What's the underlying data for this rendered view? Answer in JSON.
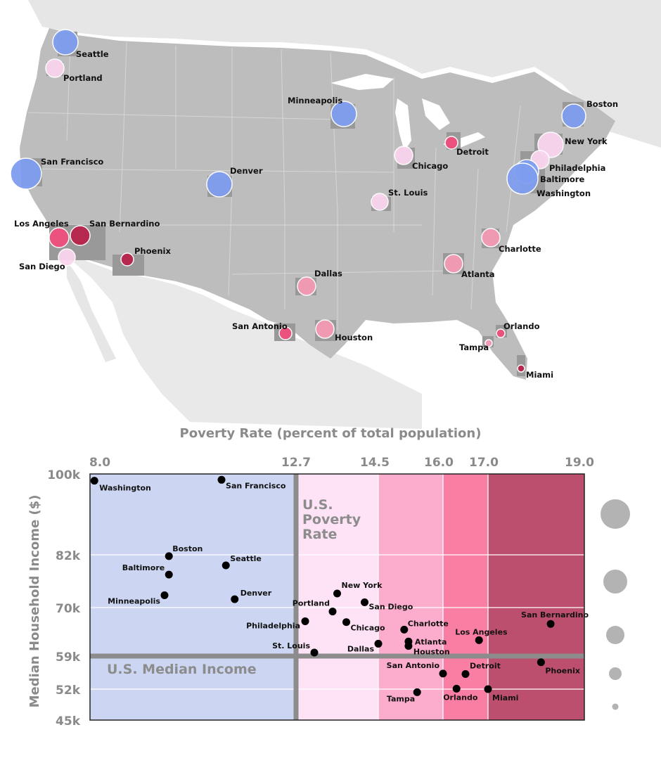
{
  "colors": {
    "blue_bubble": "#7f9ef0",
    "light_pink_bubble": "#fad6ee",
    "mid_pink_bubble": "#f59ab5",
    "hot_pink_bubble": "#ef4f7c",
    "dark_red_bubble": "#b8224a",
    "band_blue": "#ccd6f2",
    "band_lightpink": "#fde3f5",
    "band_pink": "#fcaccc",
    "band_hotpink": "#f97ea4",
    "band_darkred": "#bd4f6e",
    "reference_line": "#8c8c8c"
  },
  "map": {
    "cities": [
      {
        "name": "Seattle",
        "color": "blue"
      },
      {
        "name": "Portland",
        "color": "light_pink"
      },
      {
        "name": "San Francisco",
        "color": "blue"
      },
      {
        "name": "Los Angeles",
        "color": "hot_pink"
      },
      {
        "name": "San Bernardino",
        "color": "dark_red"
      },
      {
        "name": "San Diego",
        "color": "light_pink"
      },
      {
        "name": "Phoenix",
        "color": "dark_red"
      },
      {
        "name": "Denver",
        "color": "blue"
      },
      {
        "name": "Minneapolis",
        "color": "blue"
      },
      {
        "name": "Dallas",
        "color": "mid_pink"
      },
      {
        "name": "San Antonio",
        "color": "hot_pink"
      },
      {
        "name": "Houston",
        "color": "mid_pink"
      },
      {
        "name": "Chicago",
        "color": "light_pink"
      },
      {
        "name": "St. Louis",
        "color": "light_pink"
      },
      {
        "name": "Detroit",
        "color": "hot_pink"
      },
      {
        "name": "Atlanta",
        "color": "mid_pink"
      },
      {
        "name": "Charlotte",
        "color": "mid_pink"
      },
      {
        "name": "Orlando",
        "color": "hot_pink"
      },
      {
        "name": "Tampa",
        "color": "mid_pink"
      },
      {
        "name": "Miami",
        "color": "dark_red"
      },
      {
        "name": "Boston",
        "color": "blue"
      },
      {
        "name": "New York",
        "color": "light_pink"
      },
      {
        "name": "Philadelphia",
        "color": "light_pink"
      },
      {
        "name": "Baltimore",
        "color": "blue"
      },
      {
        "name": "Washington",
        "color": "blue"
      }
    ]
  },
  "chart_data": {
    "type": "scatter",
    "xlabel": "Poverty Rate (percent of total population)",
    "ylabel": "Median Household Income ($)",
    "xticks": [
      "8.0",
      "12.7",
      "14.5",
      "16.0",
      "17.0",
      "19.0"
    ],
    "yticks": [
      "100k",
      "82k",
      "70k",
      "59k",
      "52k",
      "45k"
    ],
    "reference_lines": {
      "poverty_rate_label": "U.S. Poverty Rate",
      "median_income_label": "U.S. Median Income",
      "poverty_rate_x": 12.7,
      "median_income_y": 59
    },
    "bands": [
      {
        "from": "8.0",
        "to": "12.7",
        "color": "blue"
      },
      {
        "from": "12.7",
        "to": "14.5",
        "color": "lightpink"
      },
      {
        "from": "14.5",
        "to": "16.0",
        "color": "pink"
      },
      {
        "from": "16.0",
        "to": "17.0",
        "color": "hotpink"
      },
      {
        "from": "17.0",
        "to": "19.0",
        "color": "darkred"
      }
    ],
    "points": [
      {
        "name": "Washington",
        "x": 8.1,
        "y": 98.5
      },
      {
        "name": "San Francisco",
        "x": 11.0,
        "y": 98.7
      },
      {
        "name": "Boston",
        "x": 9.8,
        "y": 81.7
      },
      {
        "name": "Seattle",
        "x": 11.1,
        "y": 79.6
      },
      {
        "name": "Baltimore",
        "x": 9.8,
        "y": 77.5
      },
      {
        "name": "Minneapolis",
        "x": 9.7,
        "y": 72.8
      },
      {
        "name": "Denver",
        "x": 11.3,
        "y": 71.9
      },
      {
        "name": "New York",
        "x": 13.6,
        "y": 73.2
      },
      {
        "name": "San Diego",
        "x": 14.2,
        "y": 71.2
      },
      {
        "name": "Portland",
        "x": 13.5,
        "y": 69.1
      },
      {
        "name": "Chicago",
        "x": 13.8,
        "y": 66.7
      },
      {
        "name": "Philadelphia",
        "x": 12.9,
        "y": 66.9
      },
      {
        "name": "Charlotte",
        "x": 15.1,
        "y": 65.0
      },
      {
        "name": "Atlanta",
        "x": 15.2,
        "y": 62.3
      },
      {
        "name": "Houston",
        "x": 15.2,
        "y": 61.3
      },
      {
        "name": "Dallas",
        "x": 14.5,
        "y": 61.8
      },
      {
        "name": "St. Louis",
        "x": 13.1,
        "y": 59.8
      },
      {
        "name": "San Antonio",
        "x": 16.0,
        "y": 55.3
      },
      {
        "name": "Detroit",
        "x": 16.5,
        "y": 55.2
      },
      {
        "name": "Orlando",
        "x": 16.3,
        "y": 52.1
      },
      {
        "name": "Tampa",
        "x": 15.4,
        "y": 51.3
      },
      {
        "name": "Miami",
        "x": 17.0,
        "y": 52.0
      },
      {
        "name": "Los Angeles",
        "x": 16.8,
        "y": 62.6
      },
      {
        "name": "Phoenix",
        "x": 18.1,
        "y": 57.7
      },
      {
        "name": "San Bernardino",
        "x": 18.3,
        "y": 66.3
      }
    ]
  }
}
